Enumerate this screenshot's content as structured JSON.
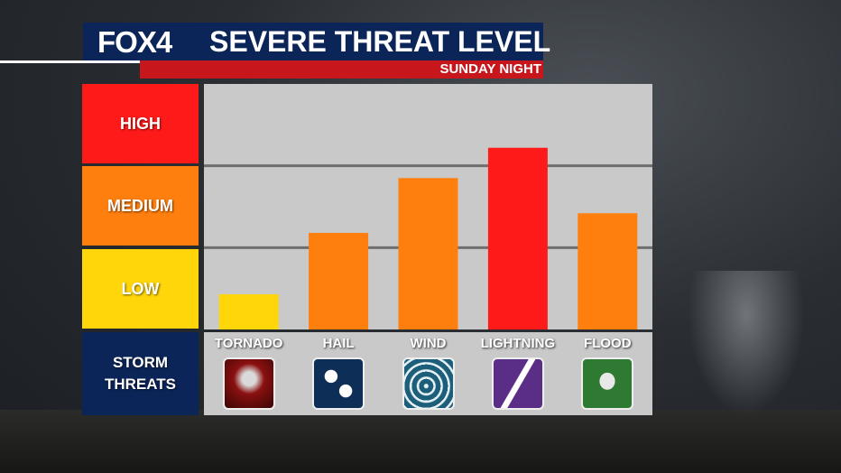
{
  "header": {
    "logo": "FOX4",
    "title": "SEVERE THREAT LEVEL",
    "subtitle": "SUNDAY NIGHT"
  },
  "levels": {
    "high": "HIGH",
    "medium": "MEDIUM",
    "low": "LOW",
    "threats_line1": "STORM",
    "threats_line2": "THREATS"
  },
  "colors": {
    "high": "#ff1a1a",
    "medium": "#ff7f0e",
    "low": "#ffd60a",
    "brand_blue": "#0b2559",
    "brand_red": "#c8161d"
  },
  "chart_data": {
    "type": "bar",
    "title": "SEVERE THREAT LEVEL",
    "subtitle": "SUNDAY NIGHT",
    "categories": [
      "TORNADO",
      "HAIL",
      "WIND",
      "LIGHTNING",
      "FLOOD"
    ],
    "values": [
      0.43,
      1.18,
      1.85,
      2.22,
      1.42
    ],
    "ylim": [
      0,
      3
    ],
    "y_levels": [
      "LOW",
      "MEDIUM",
      "HIGH"
    ],
    "bar_colors": [
      "#ffd60a",
      "#ff7f0e",
      "#ff7f0e",
      "#ff1a1a",
      "#ff7f0e"
    ],
    "icons": [
      "tornado-icon",
      "hail-icon",
      "wind-icon",
      "lightning-icon",
      "flood-icon"
    ],
    "grid": true
  }
}
